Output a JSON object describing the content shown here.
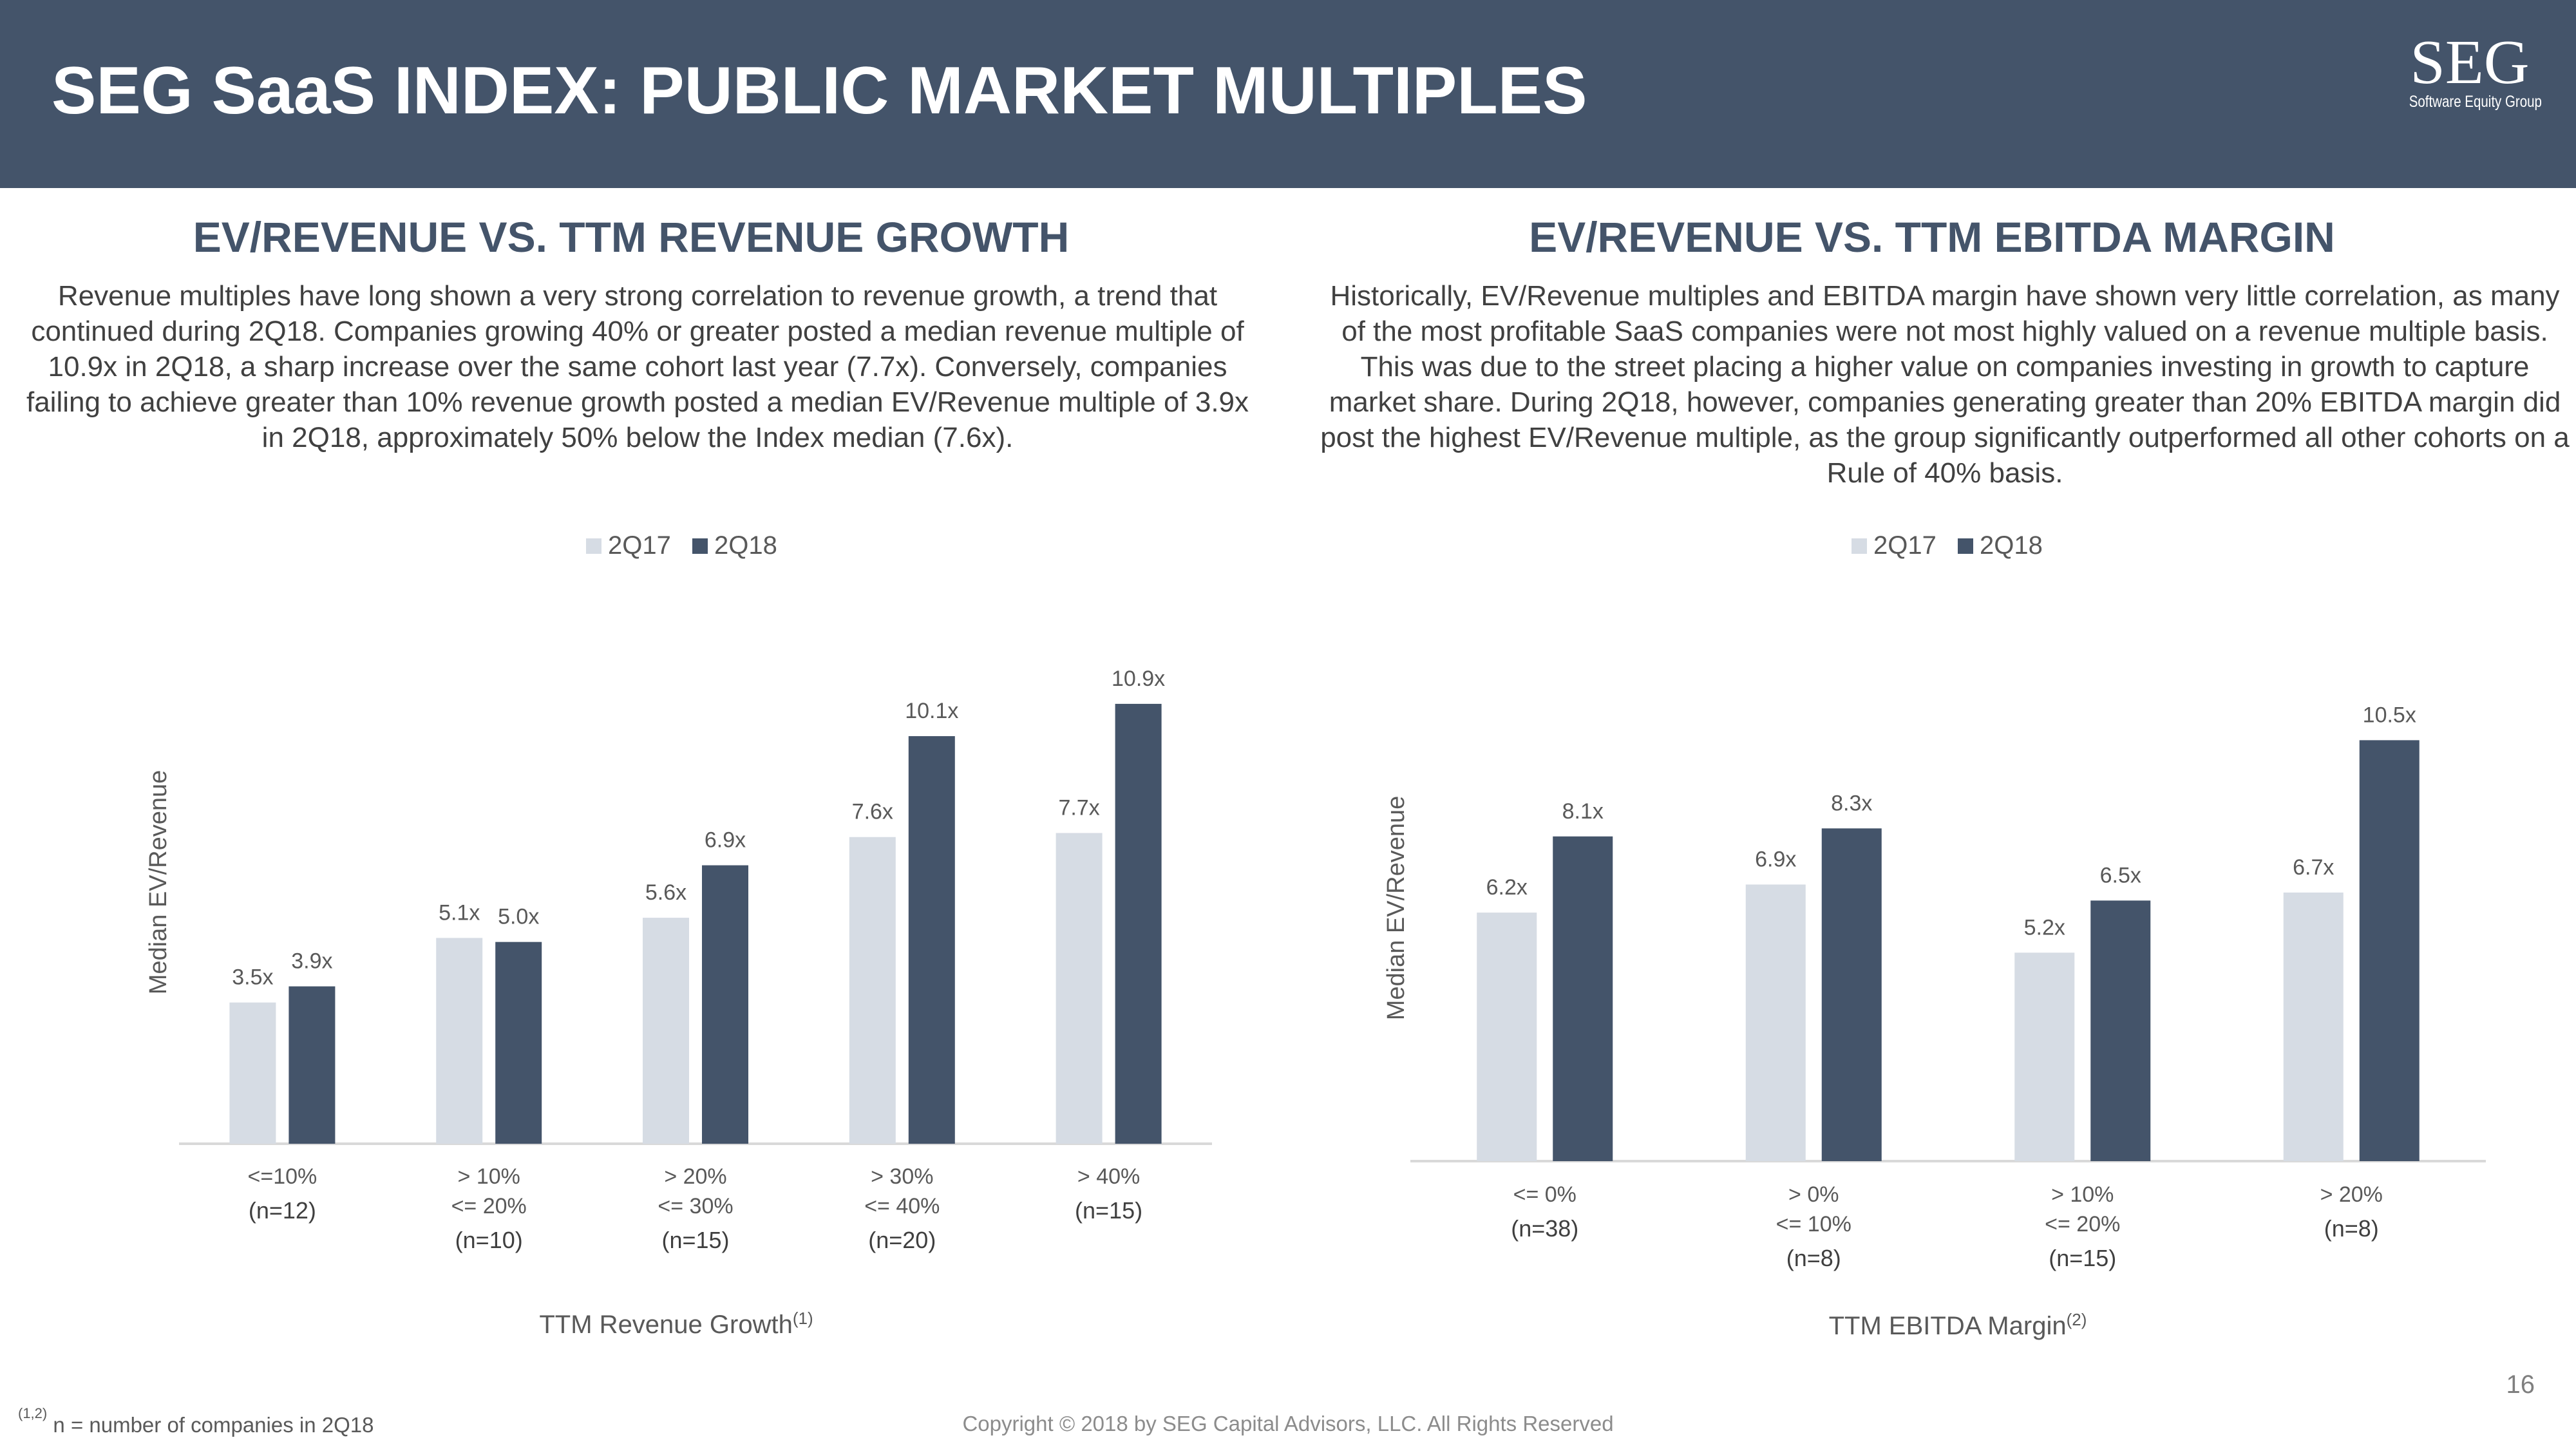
{
  "header": {
    "title": "SEG SaaS INDEX: PUBLIC MARKET MULTIPLES",
    "logo_main": "SEG",
    "logo_sub": "Software Equity Group"
  },
  "left_panel": {
    "title": "EV/REVENUE VS. TTM REVENUE GROWTH",
    "text": "Revenue multiples have long shown a very strong correlation to revenue growth, a trend that continued during 2Q18. Companies growing 40% or greater posted a median revenue multiple of 10.9x in 2Q18, a sharp increase over the same cohort last year (7.7x). Conversely, companies failing to achieve greater than 10% revenue growth posted a median EV/Revenue multiple of 3.9x in 2Q18, approximately 50% below the Index median (7.6x)."
  },
  "right_panel": {
    "title": "EV/REVENUE VS. TTM EBITDA MARGIN",
    "text": "Historically, EV/Revenue multiples and EBITDA margin have shown very little correlation, as many of the most profitable SaaS companies were not most highly valued on a revenue multiple basis. This was due to the street placing a higher value on companies investing in growth to capture market share. During 2Q18, however, companies generating greater than 20% EBITDA margin did post the highest EV/Revenue multiple, as the group significantly outperformed all other cohorts on a Rule of 40% basis."
  },
  "colors": {
    "header_bg": "#44546a",
    "series_2q17": "#d6dce4",
    "series_2q18": "#44546a",
    "title_text": "#44546a"
  },
  "chart_data": [
    {
      "type": "bar",
      "title": "",
      "xlabel": "TTM Revenue Growth",
      "xlabel_sup": "(1)",
      "ylabel": "Median EV/Revenue",
      "ylim": [
        0,
        12
      ],
      "legend_position": "top-center",
      "categories": [
        {
          "lines": [
            "<=10%"
          ],
          "n": "(n=12)"
        },
        {
          "lines": [
            "> 10%",
            "<= 20%"
          ],
          "n": "(n=10)"
        },
        {
          "lines": [
            "> 20%",
            "<= 30%"
          ],
          "n": "(n=15)"
        },
        {
          "lines": [
            "> 30%",
            "<= 40%"
          ],
          "n": "(n=20)"
        },
        {
          "lines": [
            "> 40%"
          ],
          "n": "(n=15)"
        }
      ],
      "series": [
        {
          "name": "2Q17",
          "values": [
            3.5,
            5.1,
            5.6,
            7.6,
            7.7
          ],
          "labels": [
            "3.5x",
            "5.1x",
            "5.6x",
            "7.6x",
            "7.7x"
          ]
        },
        {
          "name": "2Q18",
          "values": [
            3.9,
            5.0,
            6.9,
            10.1,
            10.9
          ],
          "labels": [
            "3.9x",
            "5.0x",
            "6.9x",
            "10.1x",
            "10.9x"
          ]
        }
      ]
    },
    {
      "type": "bar",
      "title": "",
      "xlabel": "TTM EBITDA Margin",
      "xlabel_sup": "(2)",
      "ylabel": "Median EV/Revenue",
      "ylim": [
        0,
        12
      ],
      "legend_position": "top-center",
      "categories": [
        {
          "lines": [
            "<= 0%"
          ],
          "n": "(n=38)"
        },
        {
          "lines": [
            "> 0%",
            "<= 10%"
          ],
          "n": "(n=8)"
        },
        {
          "lines": [
            "> 10%",
            "<= 20%"
          ],
          "n": "(n=15)"
        },
        {
          "lines": [
            "> 20%"
          ],
          "n": "(n=8)"
        }
      ],
      "series": [
        {
          "name": "2Q17",
          "values": [
            6.2,
            6.9,
            5.2,
            6.7
          ],
          "labels": [
            "6.2x",
            "6.9x",
            "5.2x",
            "6.7x"
          ]
        },
        {
          "name": "2Q18",
          "values": [
            8.1,
            8.3,
            6.5,
            10.5
          ],
          "labels": [
            "8.1x",
            "8.3x",
            "6.5x",
            "10.5x"
          ]
        }
      ]
    }
  ],
  "footer": {
    "footnote_sup": "(1,2)",
    "footnote": "n = number of companies in 2Q18",
    "copyright": "Copyright © 2018 by SEG Capital Advisors, LLC. All Rights Reserved",
    "page_number": "16"
  }
}
